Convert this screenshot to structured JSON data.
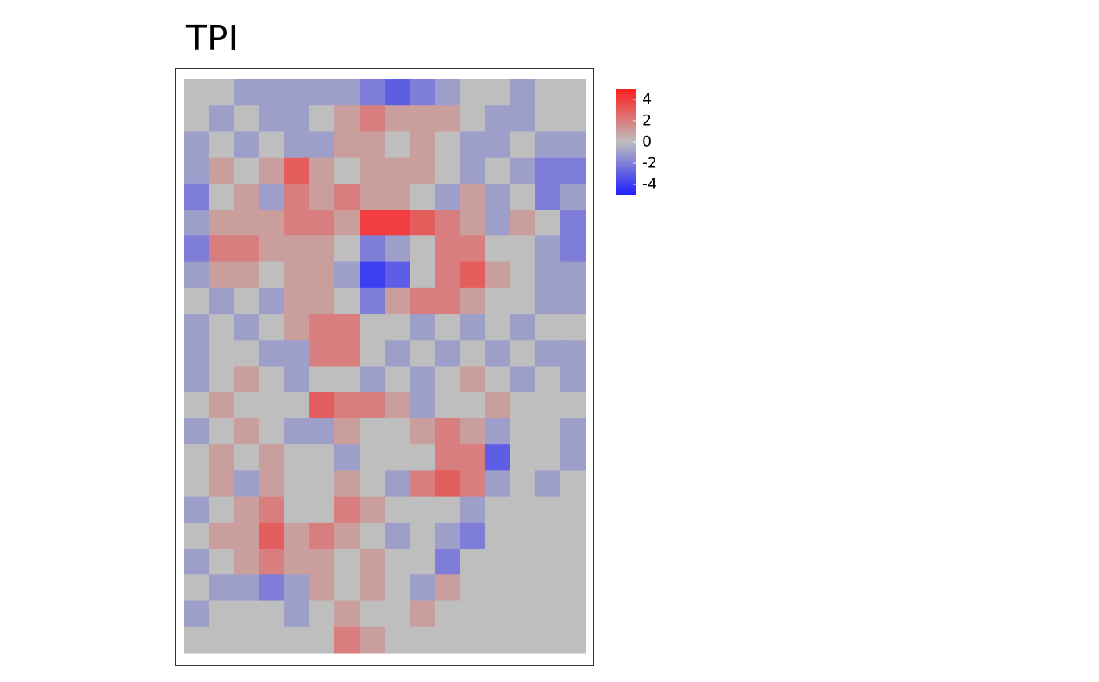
{
  "chart_data": {
    "type": "raster",
    "title": "TPI",
    "clim": [
      -5,
      5
    ],
    "colors": [
      "#1e1eff",
      "#bebebe",
      "#ff1e1e"
    ],
    "legend_ticks": [
      4,
      2,
      0,
      -2,
      -4
    ],
    "values": [
      [
        0,
        0,
        -1,
        -1,
        -1,
        -1,
        -1,
        -2,
        -3,
        -2,
        -1,
        0,
        0,
        -1,
        0,
        0
      ],
      [
        0,
        -1,
        0,
        -1,
        -1,
        0,
        1,
        2,
        1,
        1,
        1,
        0,
        -1,
        -1,
        0,
        0
      ],
      [
        -1,
        0,
        -1,
        0,
        -1,
        -1,
        1,
        1,
        0,
        1,
        0,
        -1,
        -1,
        0,
        -1,
        -1
      ],
      [
        -1,
        1,
        0,
        1,
        3,
        1,
        0,
        1,
        1,
        1,
        0,
        -1,
        0,
        -1,
        -2,
        -2
      ],
      [
        -2,
        0,
        1,
        -1,
        2,
        1,
        2,
        1,
        1,
        0,
        -1,
        1,
        -1,
        0,
        -2,
        -1
      ],
      [
        -1,
        1,
        1,
        1,
        2,
        2,
        1,
        4,
        4,
        3,
        2,
        1,
        -1,
        1,
        0,
        -2
      ],
      [
        -2,
        2,
        2,
        1,
        1,
        1,
        0,
        -2,
        -1,
        0,
        2,
        2,
        0,
        0,
        -1,
        -2
      ],
      [
        -1,
        1,
        1,
        0,
        1,
        1,
        -1,
        -4,
        -3,
        0,
        2,
        3,
        1,
        0,
        -1,
        -1
      ],
      [
        0,
        -1,
        0,
        -1,
        1,
        1,
        0,
        -2,
        1,
        2,
        2,
        1,
        0,
        0,
        -1,
        -1
      ],
      [
        -1,
        0,
        -1,
        0,
        1,
        2,
        2,
        0,
        0,
        -1,
        0,
        -1,
        0,
        -1,
        0,
        0
      ],
      [
        -1,
        0,
        0,
        -1,
        -1,
        2,
        2,
        0,
        -1,
        0,
        -1,
        0,
        -1,
        0,
        -1,
        -1
      ],
      [
        -1,
        0,
        1,
        0,
        -1,
        0,
        0,
        -1,
        0,
        -1,
        0,
        1,
        0,
        -1,
        0,
        -1
      ],
      [
        0,
        1,
        0,
        0,
        0,
        3,
        2,
        2,
        1,
        -1,
        0,
        0,
        1,
        0,
        0,
        0
      ],
      [
        -1,
        0,
        1,
        0,
        -1,
        -1,
        1,
        0,
        0,
        1,
        2,
        1,
        -1,
        0,
        0,
        -1
      ],
      [
        0,
        1,
        0,
        1,
        0,
        0,
        -1,
        0,
        0,
        0,
        2,
        2,
        -3,
        0,
        0,
        -1
      ],
      [
        0,
        1,
        -1,
        1,
        0,
        0,
        1,
        0,
        -1,
        2,
        3,
        2,
        -1,
        0,
        -1,
        0
      ],
      [
        -1,
        0,
        1,
        2,
        0,
        0,
        2,
        1,
        0,
        0,
        0,
        -1,
        0,
        0,
        0,
        0
      ],
      [
        0,
        1,
        1,
        3,
        1,
        2,
        1,
        0,
        -1,
        0,
        -1,
        -2,
        0,
        0,
        0,
        0
      ],
      [
        -1,
        0,
        1,
        2,
        1,
        1,
        0,
        1,
        0,
        0,
        -2,
        0,
        0,
        0,
        0,
        0
      ],
      [
        0,
        -1,
        -1,
        -2,
        -1,
        1,
        0,
        1,
        0,
        -1,
        1,
        0,
        0,
        0,
        0,
        0
      ],
      [
        -1,
        0,
        0,
        0,
        -1,
        0,
        1,
        0,
        0,
        1,
        0,
        0,
        0,
        0,
        0,
        0
      ],
      [
        0,
        0,
        0,
        0,
        0,
        0,
        2,
        1,
        0,
        0,
        0,
        0,
        0,
        0,
        0,
        0
      ]
    ]
  }
}
